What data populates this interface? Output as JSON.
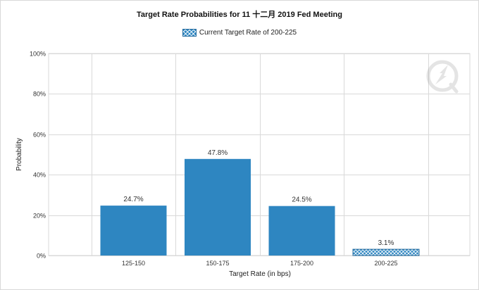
{
  "chart_data": {
    "type": "bar",
    "title": "Target Rate Probabilities for 11 十二月 2019  Fed Meeting",
    "xlabel": "Target Rate (in bps)",
    "ylabel": "Probability",
    "categories": [
      "125-150",
      "150-175",
      "175-200",
      "200-225"
    ],
    "values": [
      24.7,
      47.8,
      24.5,
      3.1
    ],
    "data_labels": [
      "24.7%",
      "47.8%",
      "24.5%",
      "3.1%"
    ],
    "y_ticks": [
      "0%",
      "20%",
      "40%",
      "60%",
      "80%",
      "100%"
    ],
    "ylim": [
      0,
      100
    ],
    "grid": true,
    "legend": {
      "position": "top-center",
      "entries": [
        "Current Target Rate of 200-225"
      ]
    },
    "highlighted_category": "200-225",
    "colors": {
      "bar": "#2e86c1",
      "bar_border": "#2a6e9f",
      "grid": "#d9d9d9"
    }
  }
}
